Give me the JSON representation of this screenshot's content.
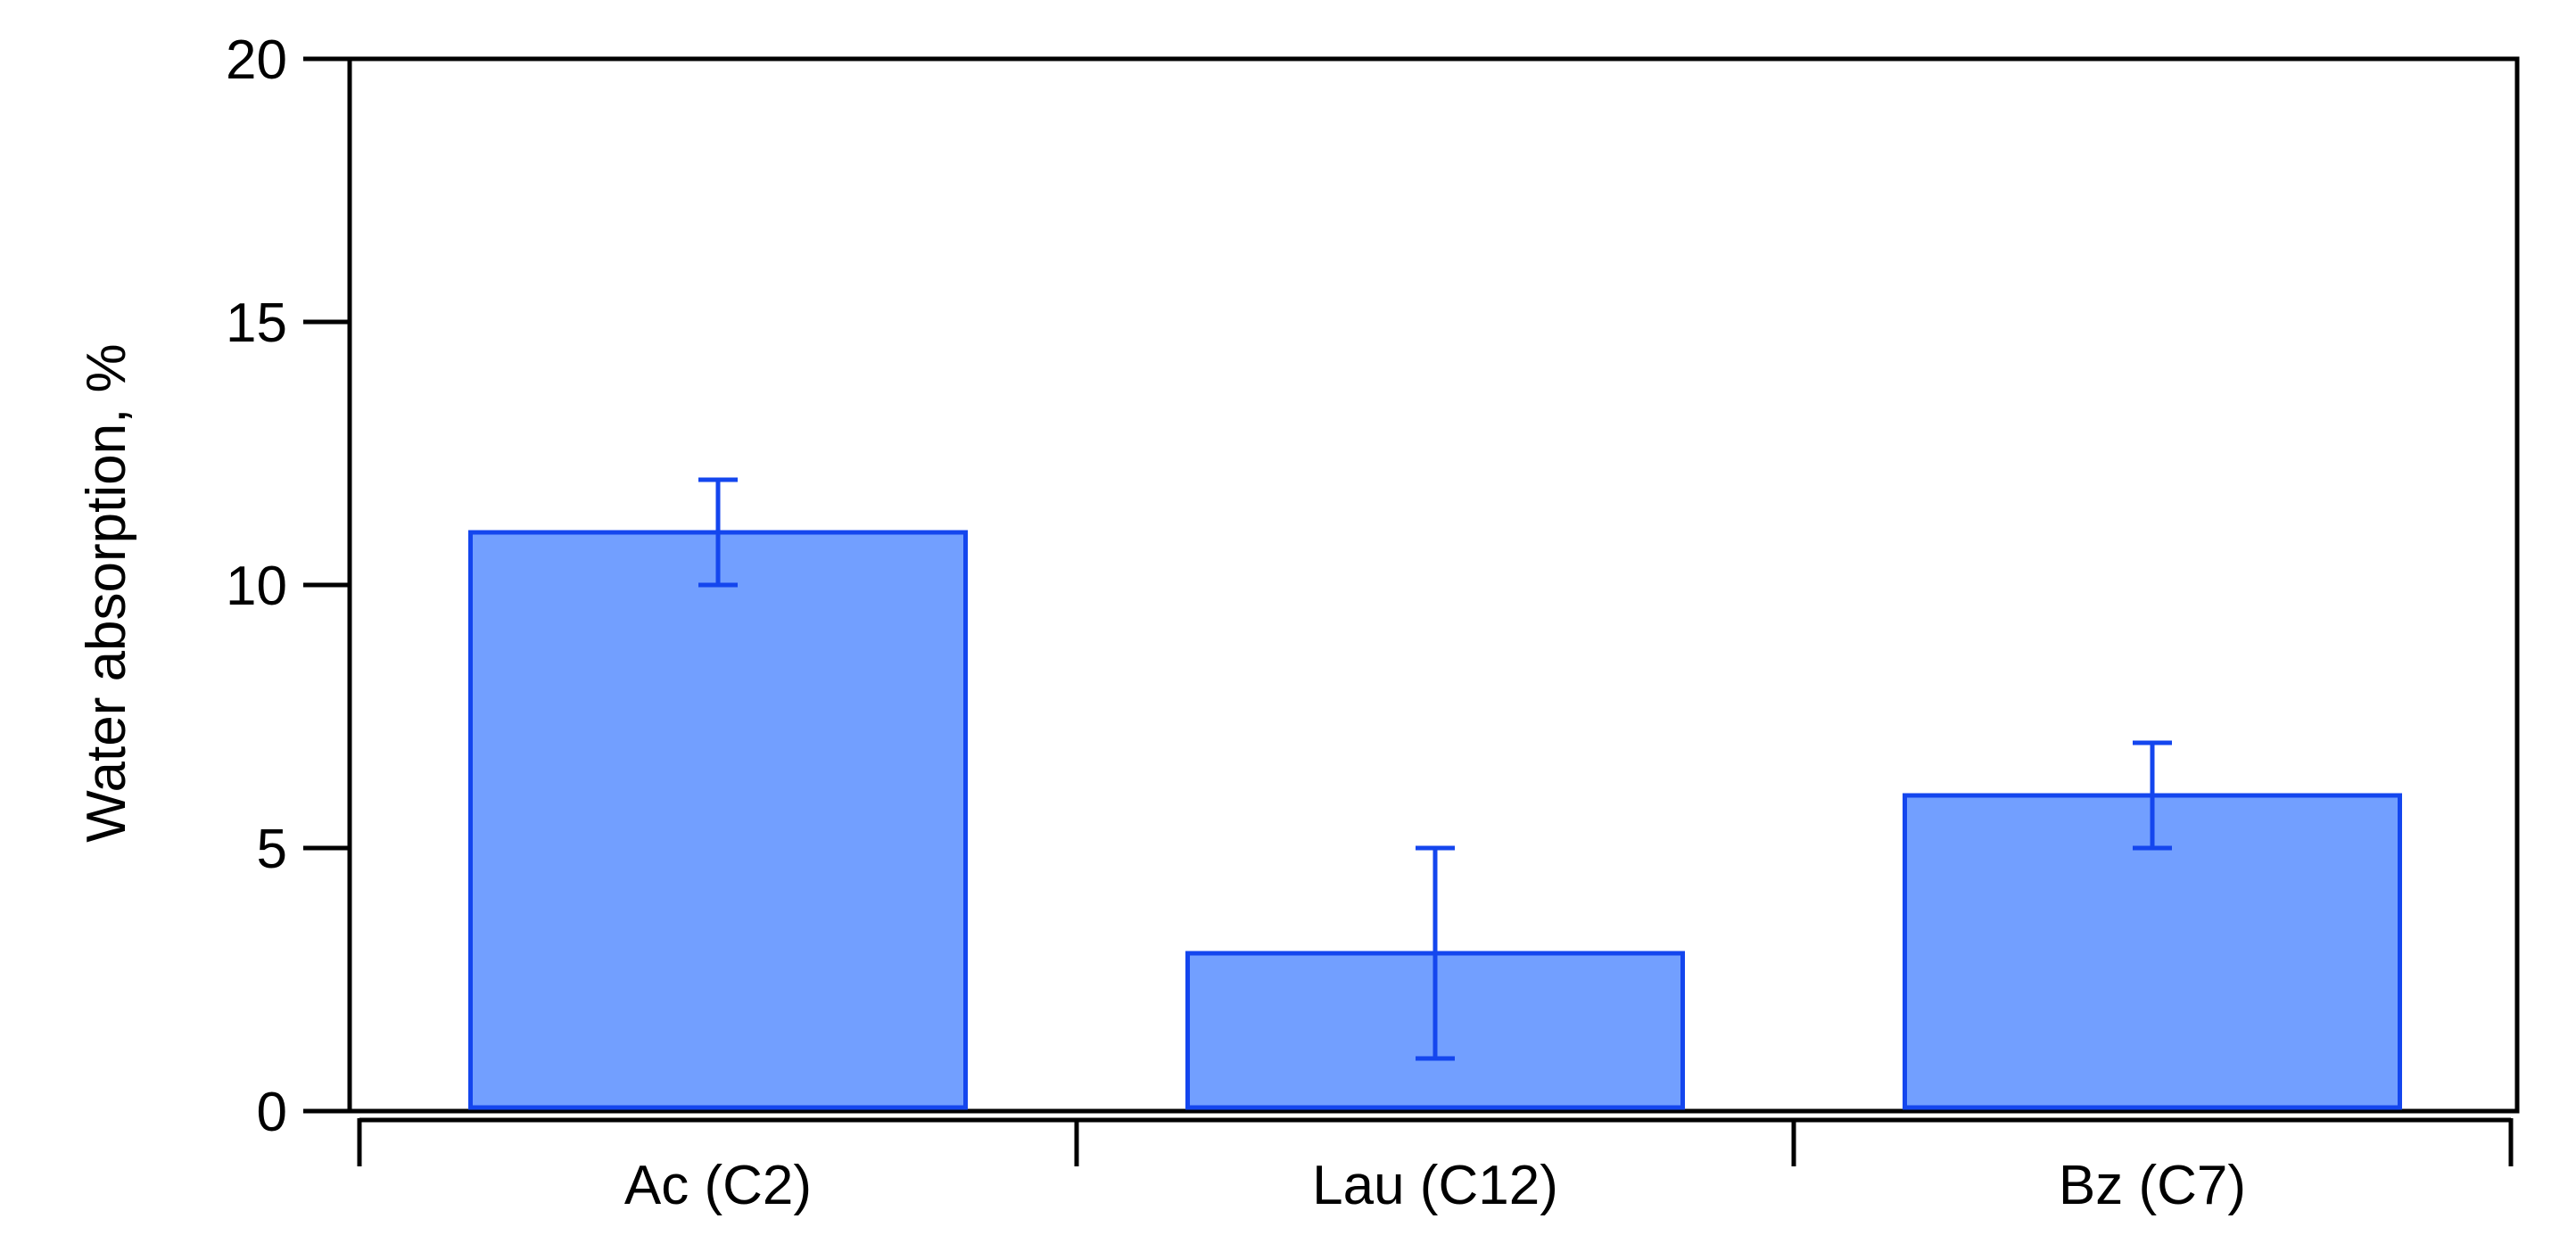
{
  "chart_data": {
    "type": "bar",
    "title": "",
    "xlabel": "",
    "ylabel": "Water absorption, %",
    "categories": [
      "Ac (C2)",
      "Lau (C12)",
      "Bz (C7)"
    ],
    "values": [
      11,
      3,
      6
    ],
    "error_low": [
      10,
      1,
      5
    ],
    "error_high": [
      12,
      5,
      7
    ],
    "ylim": [
      0,
      20
    ],
    "yticks": [
      "0",
      "5",
      "10",
      "15",
      "20"
    ],
    "grid": false,
    "legend": "none",
    "colors": {
      "bar_fill": "#729fff",
      "bar_stroke": "#1446ee",
      "error_bar": "#1446ee",
      "axis": "#000000"
    }
  }
}
